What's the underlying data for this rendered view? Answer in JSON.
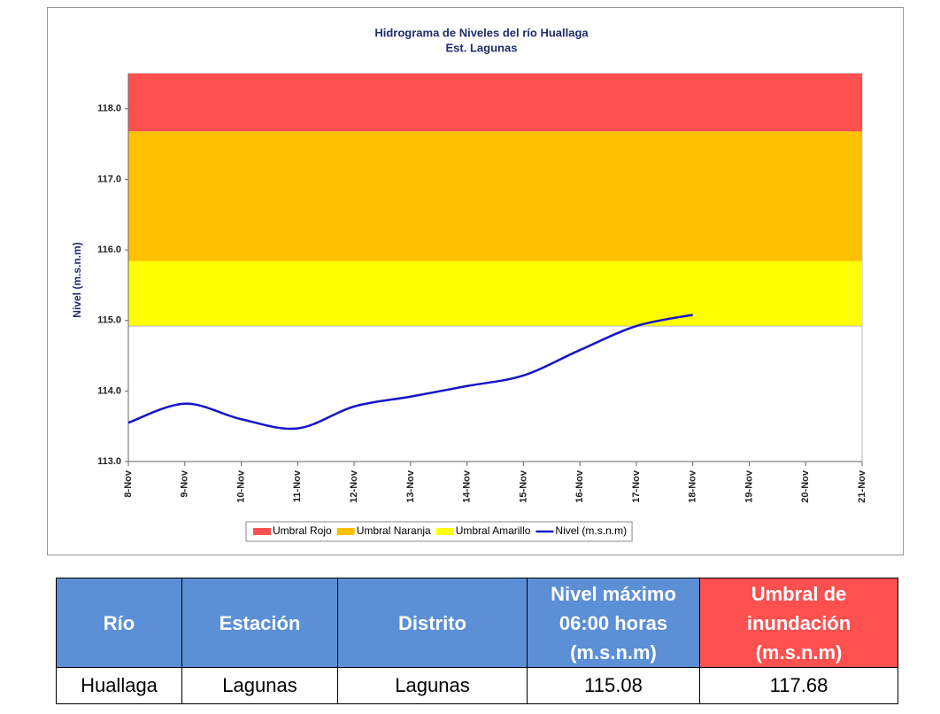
{
  "chart_data": {
    "type": "line",
    "title": "Hidrograma de Niveles del río Huallaga",
    "subtitle": "Est. Lagunas",
    "y_label": "Nivel (m.s.n.m)",
    "categories": [
      "8-Nov",
      "9-Nov",
      "10-Nov",
      "11-Nov",
      "12-Nov",
      "13-Nov",
      "14-Nov",
      "15-Nov",
      "16-Nov",
      "17-Nov",
      "18-Nov",
      "19-Nov",
      "20-Nov",
      "21-Nov"
    ],
    "thresholds": [
      {
        "name": "Umbral Rojo",
        "color": "#ff5050",
        "value": 117.68
      },
      {
        "name": "Umbral Naranja",
        "color": "#ffc000",
        "value": 115.84
      },
      {
        "name": "Umbral Amarillo",
        "color": "#ffff00",
        "value": 114.92
      }
    ],
    "series": [
      {
        "name": "Nivel (m.s.n.m)",
        "color": "#1414c8",
        "values": [
          113.55,
          113.82,
          113.6,
          113.47,
          113.78,
          113.92,
          114.07,
          114.22,
          114.58,
          114.92,
          115.08,
          null,
          null,
          null
        ]
      }
    ],
    "ylim": [
      113,
      118.5
    ],
    "yticks": [
      {
        "value": 113,
        "label": "113.0"
      },
      {
        "value": 114,
        "label": "114.0"
      },
      {
        "value": 115,
        "label": "115.0"
      },
      {
        "value": 116,
        "label": "116.0"
      },
      {
        "value": 117,
        "label": "117.0"
      },
      {
        "value": 118,
        "label": "118.0"
      }
    ]
  },
  "table": {
    "header": [
      "Río",
      "Estación",
      "Distrito",
      "Nivel máximo 06:00 horas (m.s.n.m)",
      "Umbral de inundación (m.s.n.m)"
    ],
    "rows": [
      [
        "Huallaga",
        "Lagunas",
        "Lagunas",
        "115.08",
        "117.68"
      ]
    ]
  }
}
